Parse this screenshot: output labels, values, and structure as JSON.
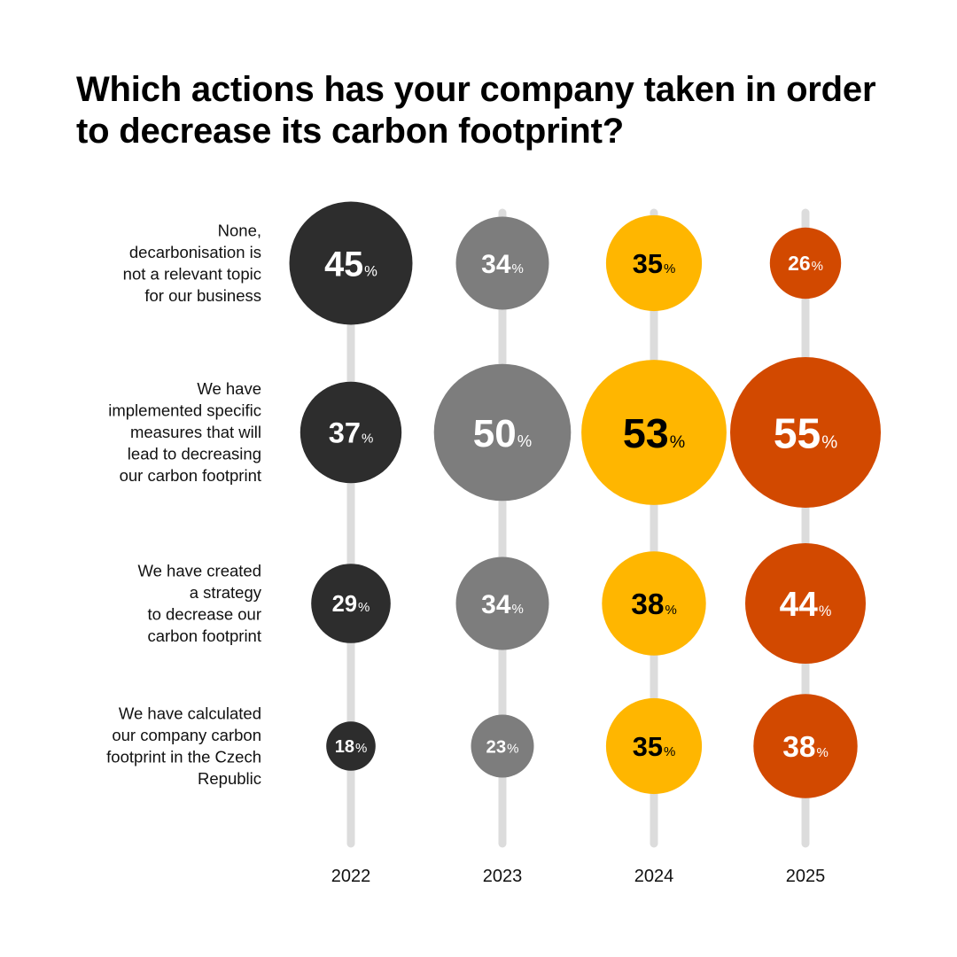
{
  "chart_data": {
    "type": "bubble-grid",
    "title": "Which actions has your company taken in order to decrease its carbon footprint?",
    "unit": "%",
    "years": [
      "2022",
      "2023",
      "2024",
      "2025"
    ],
    "series": [
      {
        "name": "2022",
        "color": "#2d2d2d",
        "text_color": "#ffffff"
      },
      {
        "name": "2023",
        "color": "#7d7d7d",
        "text_color": "#ffffff"
      },
      {
        "name": "2024",
        "color": "#ffb600",
        "text_color": "#000000"
      },
      {
        "name": "2025",
        "color": "#d24900",
        "text_color": "#ffffff"
      }
    ],
    "rows": [
      {
        "label": [
          "None,",
          "decarbonisation is",
          "not a relevant topic",
          "for our business"
        ],
        "values": [
          45,
          34,
          35,
          26
        ]
      },
      {
        "label": [
          "We have",
          "implemented specific",
          "measures that will",
          "lead to decreasing",
          "our carbon footprint"
        ],
        "values": [
          37,
          50,
          53,
          55
        ]
      },
      {
        "label": [
          "We have created",
          "a strategy",
          "to decrease our",
          "carbon footprint"
        ],
        "values": [
          29,
          34,
          38,
          44
        ]
      },
      {
        "label": [
          "We have calculated",
          "our company carbon",
          "footprint in the Czech",
          "Republic"
        ],
        "values": [
          18,
          23,
          35,
          38
        ]
      }
    ],
    "stem_color": "#dcdcdc"
  }
}
